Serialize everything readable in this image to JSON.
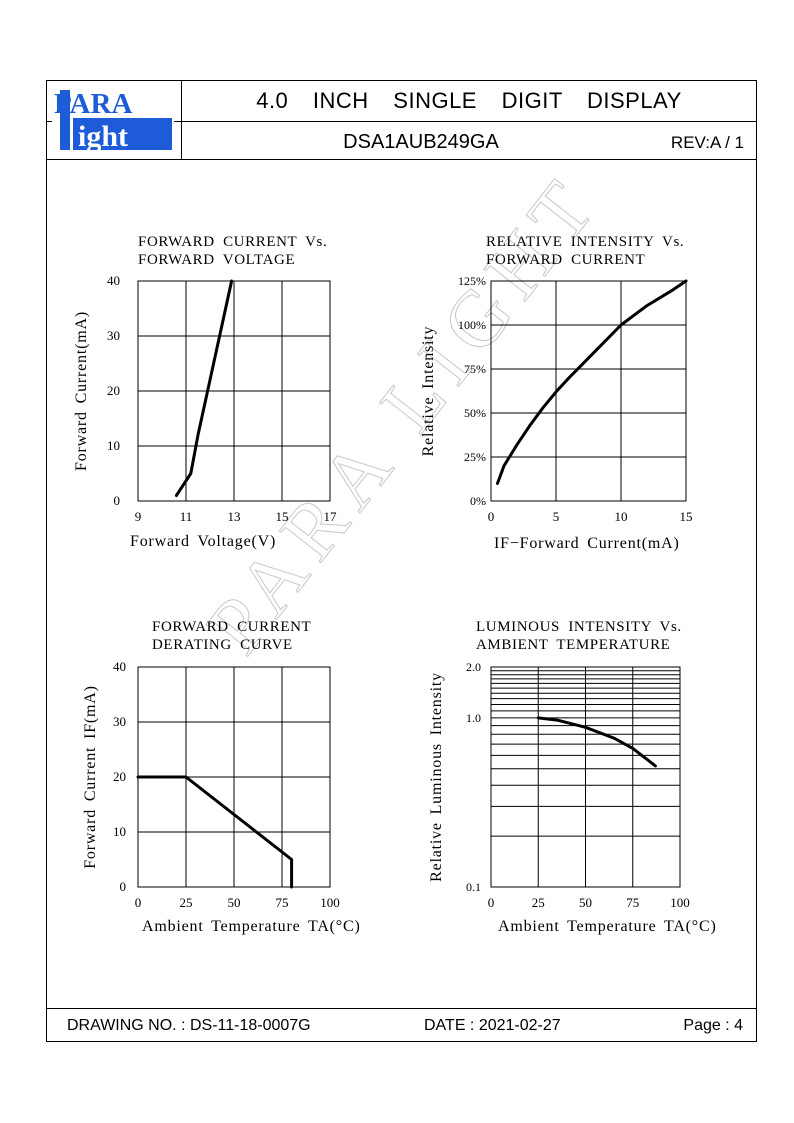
{
  "header": {
    "logo_top": "PARA",
    "logo_bottom": "ight",
    "logo_l": "L",
    "title": "4.0 INCH SINGLE DIGIT DISPLAY",
    "part_number": "DSA1AUB249GA",
    "revision": "REV:A / 1"
  },
  "footer": {
    "drawing_no": "DRAWING NO. : DS-11-18-0007G",
    "date": "DATE : 2021-02-27",
    "page": "Page : 4"
  },
  "watermark": "PARA LIGHT",
  "colors": {
    "logo_blue": "#1e5bd8",
    "line": "#000000",
    "watermark": "#c8c8c8"
  },
  "chart_data": [
    {
      "type": "line",
      "title": "FORWARD CURRENT Vs. FORWARD VOLTAGE",
      "title_lines": [
        "FORWARD CURRENT Vs.",
        "FORWARD VOLTAGE"
      ],
      "xlabel": "Forward Voltage(V)",
      "ylabel": "Forward Current(mA)",
      "xlim": [
        9,
        17
      ],
      "ylim": [
        0,
        40
      ],
      "xticks": [
        "9",
        "11",
        "13",
        "15",
        "17"
      ],
      "yticks": [
        "0",
        "10",
        "20",
        "30",
        "40"
      ],
      "grid": true,
      "x": [
        10.6,
        11.2,
        11.5,
        11.9,
        12.4,
        12.9
      ],
      "y": [
        1,
        5,
        12,
        20,
        30,
        40
      ]
    },
    {
      "type": "line",
      "title": "RELATIVE INTENSITY Vs. FORWARD CURRENT",
      "title_lines": [
        "RELATIVE INTENSITY Vs.",
        "FORWARD CURRENT"
      ],
      "xlabel": "IF−Forward Current(mA)",
      "ylabel": "Relative Intensity",
      "xlim": [
        0,
        15
      ],
      "ylim": [
        0,
        125
      ],
      "xticks": [
        "0",
        "5",
        "10",
        "15"
      ],
      "yticks": [
        "0%",
        "25%",
        "50%",
        "75%",
        "100%",
        "125%"
      ],
      "grid": true,
      "x": [
        0.5,
        1,
        2,
        3,
        4,
        5,
        6,
        8,
        10,
        12,
        14,
        15
      ],
      "y": [
        10,
        20,
        32,
        43,
        53,
        62,
        70,
        85,
        100,
        111,
        120,
        125
      ]
    },
    {
      "type": "line",
      "title": "FORWARD CURRENT DERATING CURVE",
      "title_lines": [
        "FORWARD CURRENT",
        "DERATING CURVE"
      ],
      "xlabel": "Ambient Temperature TA(°C)",
      "ylabel": "Forward Current IF(mA)",
      "xlim": [
        0,
        100
      ],
      "ylim": [
        0,
        40
      ],
      "xticks": [
        "0",
        "25",
        "50",
        "75",
        "100"
      ],
      "yticks": [
        "0",
        "10",
        "20",
        "30",
        "40"
      ],
      "grid": true,
      "x": [
        0,
        25,
        80,
        80
      ],
      "y": [
        20,
        20,
        5,
        0
      ]
    },
    {
      "type": "line",
      "title": "LUMINOUS INTENSITY Vs. AMBIENT TEMPERATURE",
      "title_lines": [
        "LUMINOUS INTENSITY Vs.",
        "AMBIENT TEMPERATURE"
      ],
      "xlabel": "Ambient Temperature TA(°C)",
      "ylabel": "Relative Luminous Intensity",
      "xlim": [
        0,
        100
      ],
      "ylim": [
        0.1,
        2.0
      ],
      "yscale": "log",
      "xticks": [
        "0",
        "25",
        "50",
        "75",
        "100"
      ],
      "yticks": [
        "0.1",
        "1.0",
        "2.0"
      ],
      "grid": true,
      "x": [
        25,
        35,
        50,
        65,
        75,
        87
      ],
      "y": [
        1.0,
        0.97,
        0.88,
        0.76,
        0.66,
        0.52
      ]
    }
  ]
}
